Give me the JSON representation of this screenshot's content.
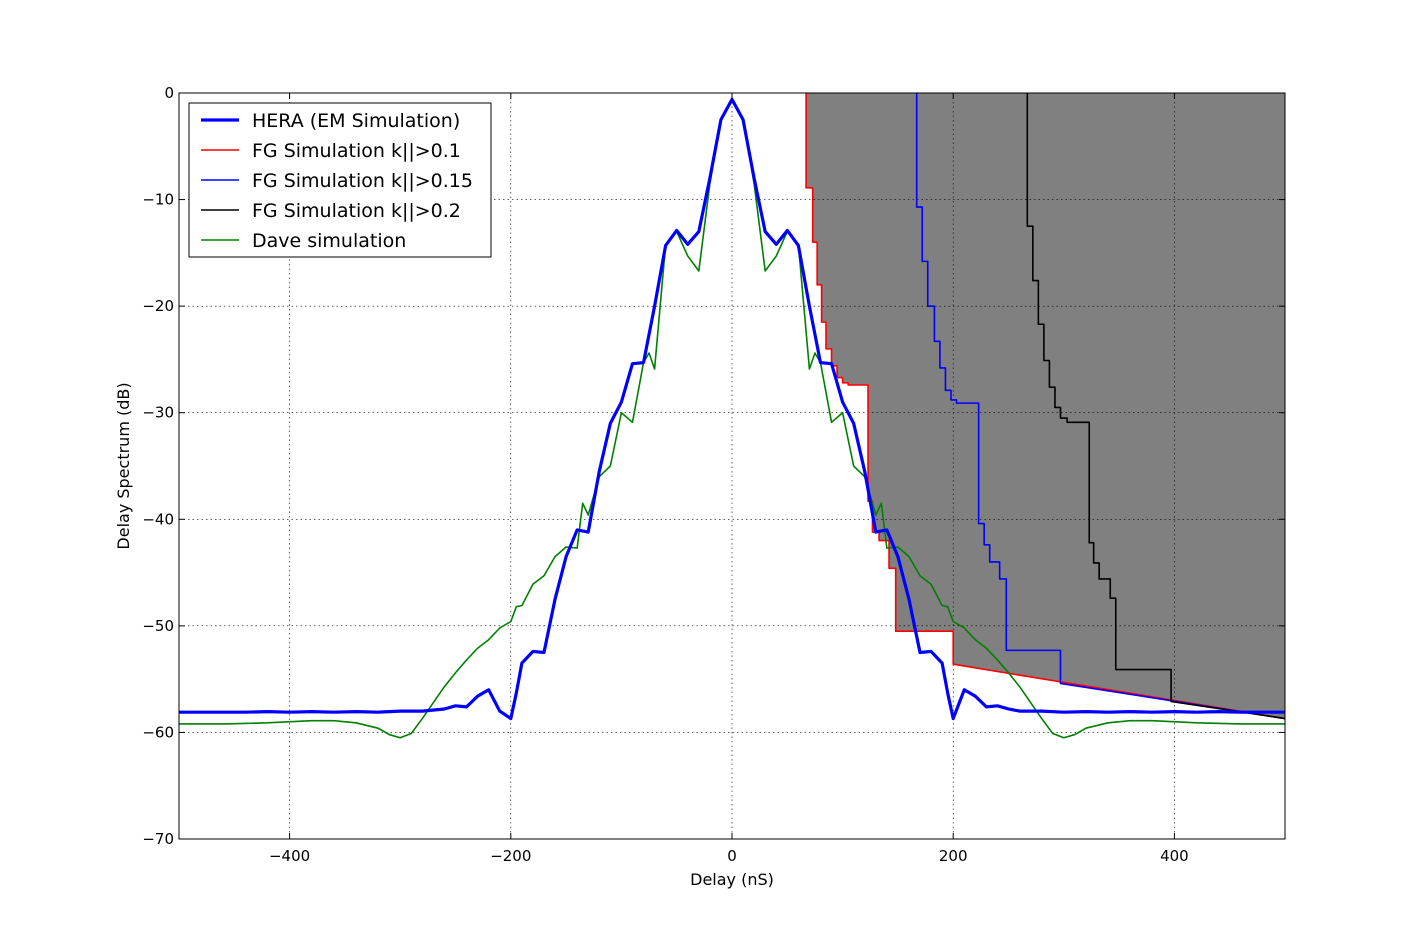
{
  "chart_data": {
    "type": "line",
    "title": "",
    "xlabel": "Delay (nS)",
    "ylabel": "Delay Spectrum (dB)",
    "xlim": [
      -500,
      500
    ],
    "ylim": [
      -70,
      0
    ],
    "xticks": [
      -400,
      -200,
      0,
      200,
      400
    ],
    "yticks": [
      0,
      -10,
      -20,
      -30,
      -40,
      -50,
      -60,
      -70
    ],
    "xtick_labels": [
      "−400",
      "−200",
      "0",
      "200",
      "400"
    ],
    "ytick_labels": [
      "0",
      "−10",
      "−20",
      "−30",
      "−40",
      "−50",
      "−60",
      "−70"
    ],
    "grid": true,
    "legend_position": "top-left",
    "shaded_regions": [
      {
        "fill": "#e5e5e5",
        "bound": "black"
      },
      {
        "fill": "#bfbfbf",
        "bound": "blue_fg"
      },
      {
        "fill": "#808080",
        "bound": "red"
      }
    ],
    "series": [
      {
        "name": "HERA (EM Simulation)",
        "color": "#0000ff",
        "width": 3.2,
        "points": [
          [
            -500,
            -58.1
          ],
          [
            -480,
            -58.1
          ],
          [
            -460,
            -58.1
          ],
          [
            -440,
            -58.1
          ],
          [
            -420,
            -58.05
          ],
          [
            -400,
            -58.1
          ],
          [
            -380,
            -58.05
          ],
          [
            -360,
            -58.1
          ],
          [
            -340,
            -58.05
          ],
          [
            -320,
            -58.1
          ],
          [
            -300,
            -58.0
          ],
          [
            -280,
            -58.0
          ],
          [
            -260,
            -57.8
          ],
          [
            -250,
            -57.5
          ],
          [
            -240,
            -57.6
          ],
          [
            -230,
            -56.6
          ],
          [
            -220,
            -56.0
          ],
          [
            -210,
            -58.0
          ],
          [
            -200,
            -58.7
          ],
          [
            -195,
            -56.3
          ],
          [
            -190,
            -53.5
          ],
          [
            -180,
            -52.4
          ],
          [
            -170,
            -52.5
          ],
          [
            -165,
            -50.0
          ],
          [
            -160,
            -47.5
          ],
          [
            -150,
            -43.5
          ],
          [
            -140,
            -41.0
          ],
          [
            -130,
            -41.2
          ],
          [
            -120,
            -35.5
          ],
          [
            -110,
            -31.0
          ],
          [
            -100,
            -29.0
          ],
          [
            -90,
            -25.4
          ],
          [
            -80,
            -25.3
          ],
          [
            -70,
            -20.0
          ],
          [
            -60,
            -14.3
          ],
          [
            -50,
            -12.9
          ],
          [
            -40,
            -14.2
          ],
          [
            -30,
            -13.0
          ],
          [
            -20,
            -8.0
          ],
          [
            -10,
            -2.5
          ],
          [
            0,
            -0.6
          ],
          [
            10,
            -2.5
          ],
          [
            20,
            -8.0
          ],
          [
            30,
            -13.0
          ],
          [
            40,
            -14.2
          ],
          [
            50,
            -12.9
          ],
          [
            60,
            -14.3
          ],
          [
            70,
            -20.0
          ],
          [
            80,
            -25.3
          ],
          [
            90,
            -25.4
          ],
          [
            100,
            -29.0
          ],
          [
            110,
            -31.0
          ],
          [
            120,
            -35.5
          ],
          [
            130,
            -41.2
          ],
          [
            140,
            -41.0
          ],
          [
            150,
            -43.5
          ],
          [
            160,
            -47.5
          ],
          [
            165,
            -50.0
          ],
          [
            170,
            -52.5
          ],
          [
            180,
            -52.4
          ],
          [
            190,
            -53.5
          ],
          [
            195,
            -56.3
          ],
          [
            200,
            -58.7
          ],
          [
            210,
            -56.0
          ],
          [
            220,
            -56.6
          ],
          [
            230,
            -57.6
          ],
          [
            240,
            -57.5
          ],
          [
            250,
            -57.8
          ],
          [
            260,
            -58.0
          ],
          [
            280,
            -58.0
          ],
          [
            300,
            -58.1
          ],
          [
            320,
            -58.05
          ],
          [
            340,
            -58.1
          ],
          [
            360,
            -58.05
          ],
          [
            380,
            -58.1
          ],
          [
            400,
            -58.05
          ],
          [
            420,
            -58.1
          ],
          [
            440,
            -58.05
          ],
          [
            460,
            -58.1
          ],
          [
            480,
            -58.1
          ],
          [
            500,
            -58.1
          ]
        ]
      },
      {
        "name": "FG Simulation k||>0.1",
        "color": "#ff0000",
        "width": 1.6,
        "points": [
          [
            67,
            0
          ],
          [
            67,
            -8.9
          ],
          [
            73,
            -8.9
          ],
          [
            73,
            -14.0
          ],
          [
            77,
            -14.0
          ],
          [
            77,
            -18.0
          ],
          [
            81,
            -18.0
          ],
          [
            81,
            -21.5
          ],
          [
            85,
            -21.5
          ],
          [
            85,
            -24.0
          ],
          [
            90,
            -24.0
          ],
          [
            90,
            -25.6
          ],
          [
            95,
            -25.6
          ],
          [
            95,
            -26.7
          ],
          [
            100,
            -26.7
          ],
          [
            100,
            -27.2
          ],
          [
            105,
            -27.2
          ],
          [
            105,
            -27.4
          ],
          [
            123,
            -27.4
          ],
          [
            123,
            -38.3
          ],
          [
            127,
            -38.3
          ],
          [
            127,
            -41.2
          ],
          [
            133,
            -41.2
          ],
          [
            133,
            -42.0
          ],
          [
            142,
            -42.0
          ],
          [
            142,
            -44.6
          ],
          [
            148,
            -44.6
          ],
          [
            148,
            -50.5
          ],
          [
            200,
            -50.5
          ],
          [
            200,
            -53.6
          ],
          [
            500,
            -58.7
          ]
        ]
      },
      {
        "name": "FG Simulation k||>0.15",
        "color": "#0000ff",
        "width": 1.6,
        "points": [
          [
            167,
            0
          ],
          [
            167,
            -10.7
          ],
          [
            172,
            -10.7
          ],
          [
            172,
            -15.8
          ],
          [
            177,
            -15.8
          ],
          [
            177,
            -20.0
          ],
          [
            183,
            -20.0
          ],
          [
            183,
            -23.3
          ],
          [
            188,
            -23.3
          ],
          [
            188,
            -25.8
          ],
          [
            193,
            -25.8
          ],
          [
            193,
            -27.9
          ],
          [
            198,
            -27.9
          ],
          [
            198,
            -28.8
          ],
          [
            203,
            -28.8
          ],
          [
            203,
            -29.1
          ],
          [
            223,
            -29.1
          ],
          [
            223,
            -40.4
          ],
          [
            228,
            -40.4
          ],
          [
            228,
            -42.4
          ],
          [
            233,
            -42.4
          ],
          [
            233,
            -44.0
          ],
          [
            242,
            -44.0
          ],
          [
            242,
            -45.6
          ],
          [
            248,
            -45.6
          ],
          [
            248,
            -52.3
          ],
          [
            297,
            -52.3
          ],
          [
            297,
            -55.4
          ],
          [
            500,
            -58.7
          ]
        ]
      },
      {
        "name": "FG Simulation k||>0.2",
        "color": "#000000",
        "width": 1.6,
        "points": [
          [
            267,
            0
          ],
          [
            267,
            -12.5
          ],
          [
            272,
            -12.5
          ],
          [
            272,
            -17.6
          ],
          [
            277,
            -17.6
          ],
          [
            277,
            -21.7
          ],
          [
            282,
            -21.7
          ],
          [
            282,
            -25.1
          ],
          [
            287,
            -25.1
          ],
          [
            287,
            -27.6
          ],
          [
            292,
            -27.6
          ],
          [
            292,
            -29.5
          ],
          [
            297,
            -29.5
          ],
          [
            297,
            -30.5
          ],
          [
            303,
            -30.5
          ],
          [
            303,
            -30.9
          ],
          [
            323,
            -30.9
          ],
          [
            323,
            -42.2
          ],
          [
            327,
            -42.2
          ],
          [
            327,
            -44.1
          ],
          [
            332,
            -44.1
          ],
          [
            332,
            -45.6
          ],
          [
            342,
            -45.6
          ],
          [
            342,
            -47.4
          ],
          [
            347,
            -47.4
          ],
          [
            347,
            -54.1
          ],
          [
            397,
            -54.1
          ],
          [
            397,
            -57.1
          ],
          [
            500,
            -58.7
          ]
        ]
      },
      {
        "name": "Dave simulation",
        "color": "#008000",
        "width": 1.6,
        "points": [
          [
            -500,
            -59.2
          ],
          [
            -460,
            -59.2
          ],
          [
            -420,
            -59.1
          ],
          [
            -380,
            -58.9
          ],
          [
            -360,
            -58.9
          ],
          [
            -340,
            -59.1
          ],
          [
            -320,
            -59.6
          ],
          [
            -310,
            -60.2
          ],
          [
            -300,
            -60.5
          ],
          [
            -290,
            -60.1
          ],
          [
            -280,
            -58.7
          ],
          [
            -270,
            -57.2
          ],
          [
            -260,
            -55.7
          ],
          [
            -250,
            -54.4
          ],
          [
            -240,
            -53.2
          ],
          [
            -230,
            -52.1
          ],
          [
            -220,
            -51.3
          ],
          [
            -210,
            -50.2
          ],
          [
            -200,
            -49.6
          ],
          [
            -195,
            -48.2
          ],
          [
            -190,
            -48.1
          ],
          [
            -180,
            -46.1
          ],
          [
            -170,
            -45.3
          ],
          [
            -160,
            -43.5
          ],
          [
            -150,
            -42.6
          ],
          [
            -140,
            -42.7
          ],
          [
            -135,
            -38.5
          ],
          [
            -130,
            -39.6
          ],
          [
            -120,
            -36.0
          ],
          [
            -110,
            -35.0
          ],
          [
            -100,
            -30.0
          ],
          [
            -90,
            -30.9
          ],
          [
            -80,
            -25.3
          ],
          [
            -75,
            -24.4
          ],
          [
            -70,
            -25.9
          ],
          [
            -60,
            -14.2
          ],
          [
            -50,
            -13.0
          ],
          [
            -40,
            -15.3
          ],
          [
            -30,
            -16.7
          ],
          [
            -20,
            -8.5
          ],
          [
            -10,
            -2.5
          ],
          [
            0,
            -0.5
          ],
          [
            10,
            -2.5
          ],
          [
            20,
            -8.5
          ],
          [
            30,
            -16.7
          ],
          [
            40,
            -15.3
          ],
          [
            50,
            -13.0
          ],
          [
            60,
            -14.2
          ],
          [
            70,
            -25.9
          ],
          [
            75,
            -24.4
          ],
          [
            80,
            -25.3
          ],
          [
            90,
            -30.9
          ],
          [
            100,
            -30.0
          ],
          [
            110,
            -35.0
          ],
          [
            120,
            -36.0
          ],
          [
            130,
            -39.6
          ],
          [
            135,
            -38.5
          ],
          [
            140,
            -42.7
          ],
          [
            150,
            -42.6
          ],
          [
            160,
            -43.5
          ],
          [
            170,
            -45.3
          ],
          [
            180,
            -46.1
          ],
          [
            190,
            -48.1
          ],
          [
            195,
            -48.2
          ],
          [
            200,
            -49.6
          ],
          [
            210,
            -50.2
          ],
          [
            220,
            -51.3
          ],
          [
            230,
            -52.1
          ],
          [
            240,
            -53.2
          ],
          [
            250,
            -54.4
          ],
          [
            260,
            -55.7
          ],
          [
            270,
            -57.2
          ],
          [
            280,
            -58.7
          ],
          [
            290,
            -60.1
          ],
          [
            300,
            -60.5
          ],
          [
            310,
            -60.2
          ],
          [
            320,
            -59.6
          ],
          [
            340,
            -59.1
          ],
          [
            360,
            -58.9
          ],
          [
            380,
            -58.9
          ],
          [
            420,
            -59.1
          ],
          [
            460,
            -59.2
          ],
          [
            500,
            -59.2
          ]
        ]
      }
    ]
  }
}
